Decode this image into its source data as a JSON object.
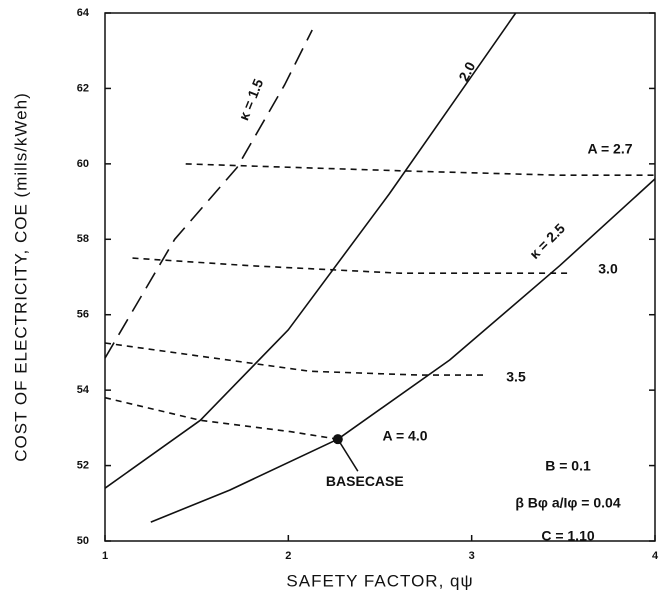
{
  "chart_data": {
    "type": "line",
    "xlabel": "SAFETY FACTOR, qψ",
    "ylabel": "COST OF ELECTRICITY, COE (mills/kWeh)",
    "xlim": [
      1,
      4
    ],
    "xticks": [
      1,
      2,
      3,
      4
    ],
    "ylim": [
      50,
      64
    ],
    "yticks": [
      50,
      52,
      54,
      56,
      58,
      60,
      62,
      64
    ],
    "color": "#111111",
    "series": [
      {
        "name": "κ = 1.5",
        "dash": "long",
        "x": [
          1.0,
          1.38,
          1.72,
          1.98,
          2.13
        ],
        "values": [
          54.85,
          58.0,
          59.9,
          62.1,
          63.55
        ]
      },
      {
        "name": "2.0",
        "dash": "none",
        "x": [
          1.0,
          1.52,
          2.0,
          2.55,
          2.91,
          3.24
        ],
        "values": [
          51.4,
          53.2,
          55.6,
          59.2,
          61.7,
          64.0
        ]
      },
      {
        "name": "κ = 2.5",
        "dash": "none",
        "x": [
          1.25,
          1.68,
          2.27,
          2.88,
          3.48,
          4.0
        ],
        "values": [
          50.5,
          51.35,
          52.7,
          54.8,
          57.3,
          59.6
        ]
      },
      {
        "name": "A = 2.7",
        "dash": "short",
        "x": [
          1.44,
          2.06,
          2.72,
          3.48,
          4.0
        ],
        "values": [
          60.0,
          59.9,
          59.8,
          59.7,
          59.7
        ]
      },
      {
        "name": "3.0",
        "dash": "short",
        "x": [
          1.15,
          1.79,
          2.61,
          3.43,
          3.54
        ],
        "values": [
          57.5,
          57.3,
          57.1,
          57.1,
          57.1
        ]
      },
      {
        "name": "3.5",
        "dash": "short",
        "x": [
          1.0,
          1.52,
          2.12,
          2.72,
          3.07
        ],
        "values": [
          55.25,
          54.9,
          54.5,
          54.4,
          54.4
        ]
      },
      {
        "name": "A = 4.0",
        "dash": "short",
        "x": [
          1.0,
          1.52,
          2.01,
          2.27
        ],
        "values": [
          53.8,
          53.2,
          52.9,
          52.7
        ]
      }
    ],
    "basecase": {
      "label": "BASECASE",
      "x": 2.27,
      "y": 52.7
    },
    "annotations": [
      "B = 0.1",
      "β Bφ a/Iφ = 0.04",
      "C = 1.10"
    ]
  }
}
